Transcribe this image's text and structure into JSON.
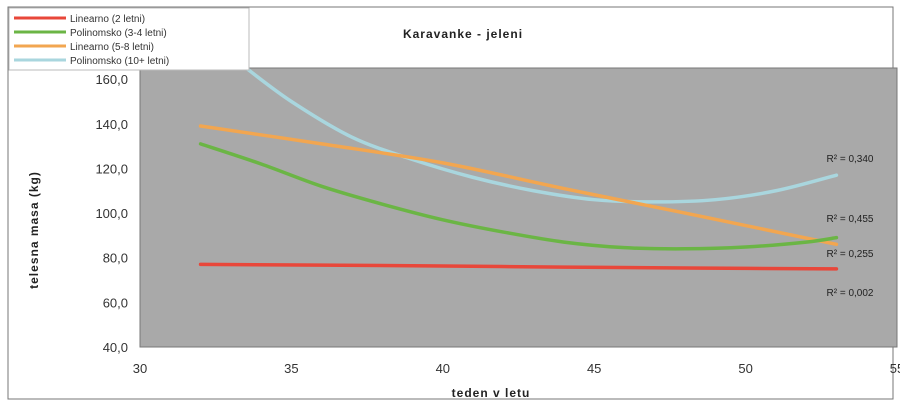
{
  "chart_data": {
    "type": "line",
    "title": "Karavanke - jeleni",
    "xlabel": "teden v letu",
    "ylabel": "telesna masa (kg)",
    "xlim": [
      30,
      55
    ],
    "ylim": [
      40,
      165
    ],
    "x_ticks": [
      "30",
      "35",
      "40",
      "45",
      "50",
      "55"
    ],
    "y_ticks": [
      "40,0",
      "60,0",
      "80,0",
      "100,0",
      "120,0",
      "140,0",
      "160,0"
    ],
    "plot_background": "#a9a9a9",
    "grid": false,
    "legend_position": "top-left",
    "series": [
      {
        "name": "Linearno (2 letni)",
        "color": "#e8473a",
        "r2_label": "R² = 0,002",
        "x": [
          32,
          36,
          40,
          44,
          48,
          53
        ],
        "y": [
          77,
          76.7,
          76.3,
          75.8,
          75.4,
          75
        ]
      },
      {
        "name": "Polinomsko (3-4 letni)",
        "color": "#6bb545",
        "r2_label": "R² = 0,255",
        "x": [
          32,
          34,
          36,
          38,
          40,
          42,
          44,
          46,
          48,
          50,
          52,
          53
        ],
        "y": [
          131,
          122,
          112,
          104,
          97,
          91.5,
          87,
          84.5,
          84,
          84.8,
          87,
          89
        ]
      },
      {
        "name": "Linearno (5-8 letni)",
        "color": "#f2a650",
        "r2_label": "R² = 0,455",
        "x": [
          32,
          36,
          40,
          44,
          48,
          53
        ],
        "y": [
          139,
          131,
          122.5,
          111,
          100,
          86
        ]
      },
      {
        "name": "Polinomsko (10+ letni)",
        "color": "#a9d6de",
        "r2_label": "R² = 0,340",
        "x": [
          33.5,
          35,
          37,
          39,
          41,
          43,
          45,
          47,
          49,
          51,
          53
        ],
        "y": [
          165,
          150,
          134,
          124,
          116,
          110,
          106,
          105,
          106,
          110,
          117
        ]
      }
    ]
  }
}
